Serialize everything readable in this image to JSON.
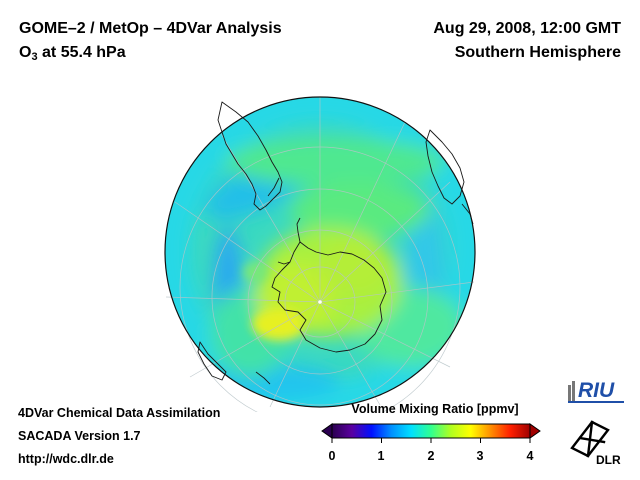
{
  "header": {
    "title_line1": "GOME–2 / MetOp – 4DVar Analysis",
    "species_prefix": "O",
    "species_subscript": "3",
    "species_suffix": " at 55.4 hPa",
    "datetime": "Aug 29, 2008, 12:00 GMT",
    "region": "Southern Hemisphere"
  },
  "footer": {
    "line1": "4DVar Chemical Data Assimilation",
    "line2": "SACADA Version 1.7",
    "line3": "http://wdc.dlr.de"
  },
  "colorbar": {
    "title": "Volume Mixing Ratio [ppmv]",
    "ticks": [
      "0",
      "1",
      "2",
      "3",
      "4"
    ],
    "range": [
      0,
      4
    ]
  },
  "logos": {
    "riu_text": "RIU",
    "dlr_text": "DLR"
  },
  "map": {
    "projection": "orthographic",
    "center": "South Pole",
    "date": "2008-08-29",
    "field": "O3 volume mixing ratio"
  },
  "colors": {
    "background": "#ffffff",
    "text": "#000000",
    "colormap": [
      "#2a0050",
      "#5a00a0",
      "#0010ff",
      "#0090ff",
      "#00e0ff",
      "#30ff90",
      "#b0ff20",
      "#ffff00",
      "#ff9000",
      "#ff2000",
      "#a00000"
    ]
  }
}
